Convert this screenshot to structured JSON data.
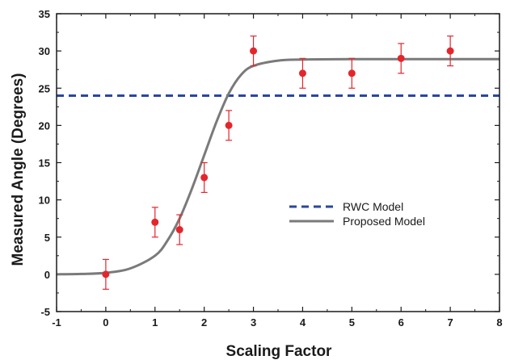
{
  "chart_data": {
    "type": "scatter",
    "xlabel": "Scaling Factor",
    "ylabel": "Measured Angle (Degrees)",
    "xlim": [
      -1,
      8
    ],
    "ylim": [
      -5,
      35
    ],
    "x_ticks": [
      -1,
      0,
      1,
      2,
      3,
      4,
      5,
      6,
      7,
      8
    ],
    "y_ticks": [
      -5,
      0,
      5,
      10,
      15,
      20,
      25,
      30,
      35
    ],
    "grid": false,
    "legend_position": "center-right",
    "series": [
      {
        "kind": "scatter_errorbar",
        "color": "#e3262d",
        "x": [
          0,
          1,
          1.5,
          2,
          2.5,
          3,
          4,
          5,
          6,
          7
        ],
        "y": [
          0,
          7,
          6,
          13,
          20,
          30,
          27,
          27,
          29,
          30
        ],
        "error": [
          2,
          2,
          2,
          2,
          2,
          2,
          2,
          2,
          2,
          2
        ]
      },
      {
        "name": "RWC Model",
        "kind": "hline",
        "color": "#2a46a0",
        "y": 24
      },
      {
        "name": "Proposed Model",
        "kind": "curve",
        "color": "#7a7a7a",
        "x": [
          -1,
          -0.5,
          0,
          0.5,
          1,
          1.25,
          1.5,
          1.75,
          2,
          2.25,
          2.5,
          2.75,
          3,
          3.5,
          4,
          5,
          6,
          7,
          8
        ],
        "y": [
          0,
          0.05,
          0.2,
          0.8,
          2.5,
          4.5,
          7.5,
          11.5,
          16,
          20.5,
          24.3,
          26.8,
          28,
          28.7,
          28.85,
          28.9,
          28.9,
          28.9,
          28.9
        ]
      }
    ]
  }
}
